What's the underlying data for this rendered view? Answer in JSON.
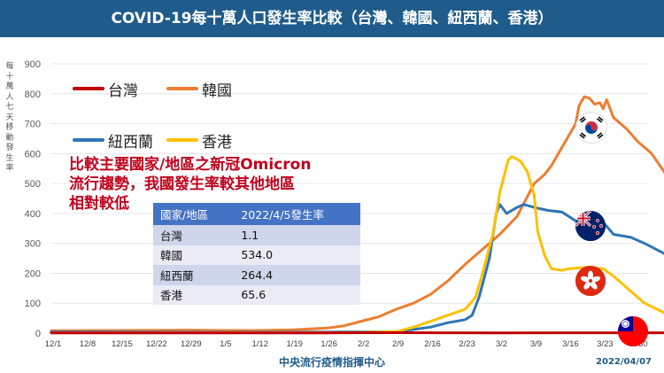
{
  "header": {
    "title": "COVID-19每十萬人口發生率比較（台灣、韓國、紐西蘭、香港）"
  },
  "ylabel": "每十萬人七天移動發生率",
  "legend": [
    {
      "label": "台灣",
      "color": "#c00000"
    },
    {
      "label": "韓國",
      "color": "#ed7d31"
    },
    {
      "label": "紐西蘭",
      "color": "#2e75b6"
    },
    {
      "label": "香港",
      "color": "#ffc000"
    }
  ],
  "annotation": {
    "lines": [
      "比較主要國家/地區之新冠Omicron",
      "流行趨勢，我國發生率較其他地區",
      "相對較低"
    ]
  },
  "table": {
    "headers": [
      "國家/地區",
      "2022/4/5發生率"
    ],
    "rows": [
      [
        "台灣",
        "1.1"
      ],
      [
        "韓國",
        "534.0"
      ],
      [
        "紐西蘭",
        "264.4"
      ],
      [
        "香港",
        "65.6"
      ]
    ]
  },
  "footer": {
    "source": "中央流行疫情指揮中心",
    "date": "2022/04/07"
  },
  "flags": [
    "south-korea-flag",
    "new-zealand-flag",
    "hong-kong-flag",
    "taiwan-flag"
  ],
  "chart_data": {
    "type": "line",
    "x": [
      "12/1",
      "12/8",
      "12/15",
      "12/22",
      "12/29",
      "1/5",
      "1/12",
      "1/19",
      "1/26",
      "2/2",
      "2/9",
      "2/16",
      "2/23",
      "3/2",
      "3/9",
      "3/16",
      "3/23",
      "3/30"
    ],
    "ylim": [
      0,
      900
    ],
    "yticks": [
      0,
      100,
      200,
      300,
      400,
      500,
      600,
      700,
      800,
      900
    ],
    "ylabel": "每十萬人七天移動發生率",
    "grid": true,
    "series": [
      {
        "name": "台灣",
        "color": "#c00000",
        "points": [
          [
            0,
            1
          ],
          [
            8,
            1
          ],
          [
            10,
            1.5
          ],
          [
            13,
            1
          ],
          [
            17.8,
            1.1
          ]
        ]
      },
      {
        "name": "韓國",
        "color": "#ed7d31",
        "points": [
          [
            0,
            8
          ],
          [
            2,
            9
          ],
          [
            4,
            10
          ],
          [
            5,
            9
          ],
          [
            6,
            9
          ],
          [
            7,
            11
          ],
          [
            8,
            17
          ],
          [
            8.5,
            25
          ],
          [
            9,
            40
          ],
          [
            9.5,
            55
          ],
          [
            10,
            80
          ],
          [
            10.5,
            100
          ],
          [
            11,
            130
          ],
          [
            11.5,
            175
          ],
          [
            12,
            230
          ],
          [
            12.5,
            280
          ],
          [
            13,
            330
          ],
          [
            13.5,
            390
          ],
          [
            14,
            500
          ],
          [
            14.3,
            530
          ],
          [
            14.5,
            560
          ],
          [
            14.8,
            620
          ],
          [
            15,
            660
          ],
          [
            15.2,
            700
          ],
          [
            15.3,
            760
          ],
          [
            15.45,
            790
          ],
          [
            15.6,
            785
          ],
          [
            15.75,
            765
          ],
          [
            15.9,
            770
          ],
          [
            16.0,
            750
          ],
          [
            16.1,
            780
          ],
          [
            16.3,
            720
          ],
          [
            16.7,
            680
          ],
          [
            17,
            640
          ],
          [
            17.4,
            600
          ],
          [
            17.8,
            534
          ]
        ]
      },
      {
        "name": "紐西蘭",
        "color": "#2e75b6",
        "points": [
          [
            0,
            4
          ],
          [
            5,
            3
          ],
          [
            9,
            4
          ],
          [
            10,
            5
          ],
          [
            10.5,
            12
          ],
          [
            11,
            20
          ],
          [
            11.5,
            35
          ],
          [
            12,
            45
          ],
          [
            12.2,
            60
          ],
          [
            12.4,
            120
          ],
          [
            12.7,
            250
          ],
          [
            12.9,
            400
          ],
          [
            13.0,
            430
          ],
          [
            13.2,
            400
          ],
          [
            13.5,
            420
          ],
          [
            13.7,
            430
          ],
          [
            14,
            420
          ],
          [
            14.4,
            410
          ],
          [
            14.8,
            405
          ],
          [
            15,
            390
          ],
          [
            15.2,
            375
          ],
          [
            15.5,
            365
          ],
          [
            15.8,
            360
          ],
          [
            16,
            370
          ],
          [
            16.3,
            330
          ],
          [
            16.8,
            320
          ],
          [
            17.2,
            300
          ],
          [
            17.8,
            264
          ]
        ]
      },
      {
        "name": "香港",
        "color": "#ffc000",
        "points": [
          [
            0,
            1
          ],
          [
            9,
            2
          ],
          [
            10,
            5
          ],
          [
            10.5,
            20
          ],
          [
            11,
            40
          ],
          [
            11.5,
            60
          ],
          [
            12,
            80
          ],
          [
            12.3,
            120
          ],
          [
            12.5,
            200
          ],
          [
            12.8,
            330
          ],
          [
            13.0,
            470
          ],
          [
            13.25,
            580
          ],
          [
            13.35,
            590
          ],
          [
            13.6,
            575
          ],
          [
            13.8,
            540
          ],
          [
            14,
            460
          ],
          [
            14.1,
            340
          ],
          [
            14.3,
            260
          ],
          [
            14.5,
            215
          ],
          [
            14.8,
            210
          ],
          [
            15,
            215
          ],
          [
            15.5,
            220
          ],
          [
            16,
            215
          ],
          [
            16.3,
            190
          ],
          [
            16.8,
            140
          ],
          [
            17.2,
            100
          ],
          [
            17.8,
            66
          ]
        ]
      }
    ]
  }
}
